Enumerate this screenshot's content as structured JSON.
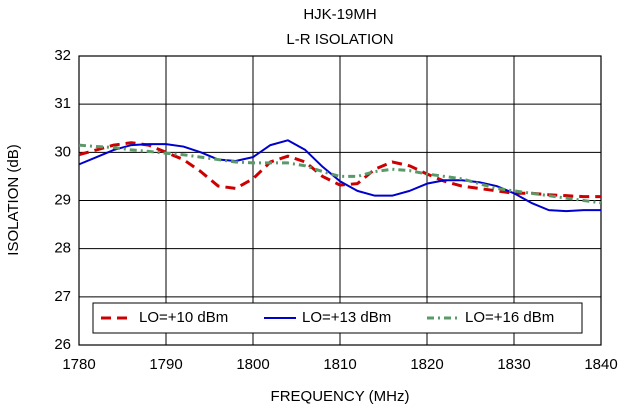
{
  "chart_data": {
    "type": "line",
    "title": "HJK-19MH",
    "subtitle": "L-R ISOLATION",
    "x_label": "FREQUENCY (MHz)",
    "y_label": "ISOLATION (dB)",
    "x": [
      1780,
      1782,
      1784,
      1786,
      1788,
      1790,
      1792,
      1794,
      1796,
      1798,
      1800,
      1802,
      1804,
      1806,
      1808,
      1810,
      1812,
      1814,
      1816,
      1818,
      1820,
      1822,
      1824,
      1826,
      1828,
      1830,
      1832,
      1834,
      1836,
      1838,
      1840
    ],
    "series": [
      {
        "name": "LO=+10 dBm",
        "color": "#cc0000",
        "linestyle": "dashed",
        "values": [
          29.95,
          30.05,
          30.15,
          30.2,
          30.15,
          30.0,
          29.85,
          29.6,
          29.3,
          29.25,
          29.45,
          29.8,
          29.92,
          29.8,
          29.5,
          29.32,
          29.35,
          29.65,
          29.8,
          29.72,
          29.55,
          29.4,
          29.3,
          29.25,
          29.2,
          29.15,
          29.15,
          29.12,
          29.1,
          29.08,
          29.08
        ]
      },
      {
        "name": "LO=+13 dBm",
        "color": "#0000cc",
        "linestyle": "solid",
        "values": [
          29.75,
          29.9,
          30.05,
          30.15,
          30.17,
          30.17,
          30.12,
          30.0,
          29.85,
          29.82,
          29.9,
          30.15,
          30.25,
          30.05,
          29.7,
          29.4,
          29.2,
          29.1,
          29.1,
          29.2,
          29.35,
          29.42,
          29.42,
          29.38,
          29.3,
          29.15,
          28.95,
          28.8,
          28.78,
          28.8,
          28.8
        ]
      },
      {
        "name": "LO=+16 dBm",
        "color": "#5a9a6a",
        "linestyle": "dashdot",
        "values": [
          30.15,
          30.12,
          30.1,
          30.05,
          30.02,
          29.98,
          29.95,
          29.9,
          29.85,
          29.8,
          29.78,
          29.78,
          29.78,
          29.72,
          29.6,
          29.5,
          29.5,
          29.6,
          29.65,
          29.62,
          29.55,
          29.5,
          29.45,
          29.35,
          29.25,
          29.2,
          29.15,
          29.1,
          29.05,
          29.0,
          28.95
        ]
      }
    ],
    "xlim": [
      1780,
      1840
    ],
    "xticks": [
      1780,
      1790,
      1800,
      1810,
      1820,
      1830,
      1840
    ],
    "ylim": [
      26,
      32
    ],
    "yticks": [
      26,
      27,
      28,
      29,
      30,
      31,
      32
    ],
    "grid": true,
    "legend": "bottom"
  }
}
